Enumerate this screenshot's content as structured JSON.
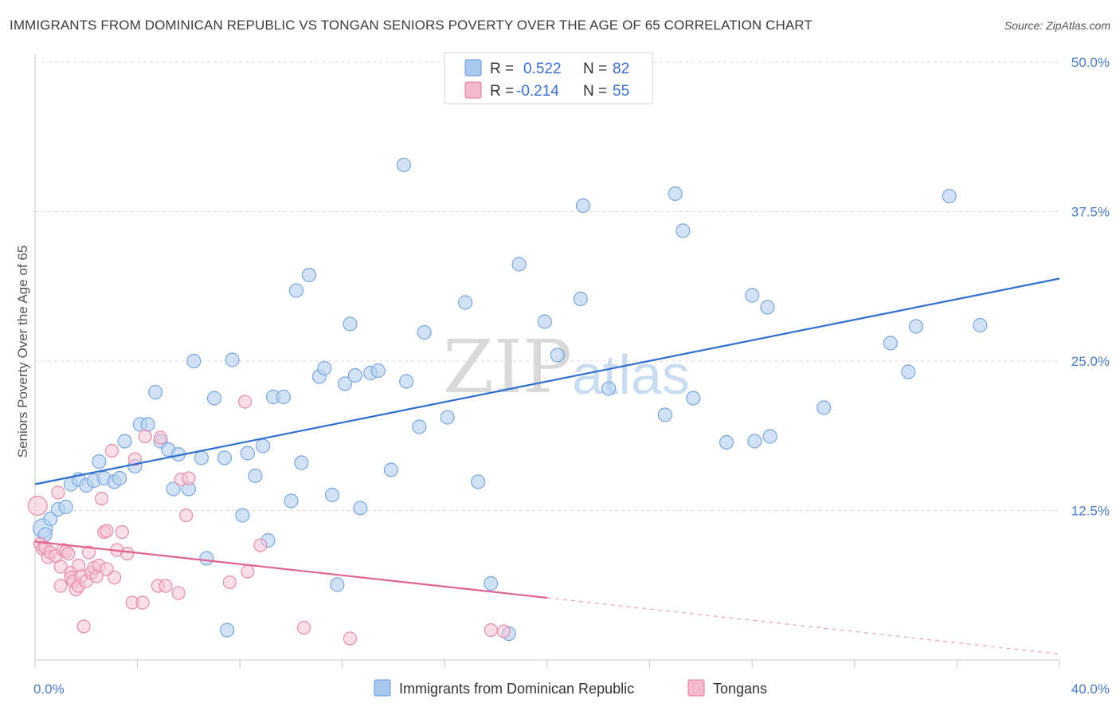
{
  "title": "IMMIGRANTS FROM DOMINICAN REPUBLIC VS TONGAN SENIORS POVERTY OVER THE AGE OF 65 CORRELATION CHART",
  "source": "Source: ZipAtlas.com",
  "watermark": {
    "zip": "ZIP",
    "atlas": "atlas"
  },
  "legend": {
    "r_label": "R =",
    "n_label": "N =",
    "rows": [
      {
        "r": "0.522",
        "n": "82",
        "fill": "#a8c8f0",
        "stroke": "#6a9ad8"
      },
      {
        "r": "-0.214",
        "n": "55",
        "fill": "#f5b8cc",
        "stroke": "#e0789c"
      }
    ]
  },
  "colors": {
    "blue_fill": "#b9d3f1",
    "blue_stroke": "#7aa6dc",
    "blue_line": "#2f6fcf",
    "pink_fill": "#f6c3d3",
    "pink_stroke": "#e58cab",
    "pink_line": "#e0648f",
    "grid": "#d8d8d8",
    "tick_text": "#4a7cc9"
  },
  "chart_data": {
    "type": "scatter",
    "title": "IMMIGRANTS FROM DOMINICAN REPUBLIC VS TONGAN SENIORS POVERTY OVER THE AGE OF 65 CORRELATION CHART",
    "xlabel": "",
    "ylabel": "Seniors Poverty Over the Age of 65",
    "xlim": [
      0,
      40
    ],
    "ylim": [
      0,
      50
    ],
    "x_tick_labels": [
      "0.0%",
      "40.0%"
    ],
    "y_ticks": [
      12.5,
      25.0,
      37.5,
      50.0
    ],
    "y_tick_labels": [
      "12.5%",
      "25.0%",
      "37.5%",
      "50.0%"
    ],
    "grid": true,
    "legend_position": "top-center",
    "series": [
      {
        "name": "Immigrants from Dominican Republic",
        "color": "#b9d3f1",
        "trend": {
          "x": [
            0,
            40
          ],
          "y": [
            14.7,
            31.9
          ]
        },
        "points": [
          [
            0.3,
            11.0
          ],
          [
            0.4,
            10.5
          ],
          [
            0.6,
            11.8
          ],
          [
            0.9,
            12.6
          ],
          [
            1.2,
            12.8
          ],
          [
            1.4,
            14.7
          ],
          [
            1.7,
            15.1
          ],
          [
            2.0,
            14.6
          ],
          [
            2.3,
            15.0
          ],
          [
            2.5,
            16.6
          ],
          [
            2.7,
            15.2
          ],
          [
            3.1,
            14.9
          ],
          [
            3.3,
            15.2
          ],
          [
            3.5,
            18.3
          ],
          [
            3.9,
            16.2
          ],
          [
            4.1,
            19.7
          ],
          [
            4.4,
            19.7
          ],
          [
            4.7,
            22.4
          ],
          [
            4.9,
            18.3
          ],
          [
            5.2,
            17.6
          ],
          [
            5.4,
            14.3
          ],
          [
            5.6,
            17.2
          ],
          [
            6.0,
            14.3
          ],
          [
            6.2,
            25.0
          ],
          [
            6.5,
            16.9
          ],
          [
            6.7,
            8.5
          ],
          [
            7.0,
            21.9
          ],
          [
            7.4,
            16.9
          ],
          [
            7.5,
            2.5
          ],
          [
            7.7,
            25.1
          ],
          [
            8.1,
            12.1
          ],
          [
            8.3,
            17.3
          ],
          [
            8.6,
            15.4
          ],
          [
            8.9,
            17.9
          ],
          [
            9.1,
            10.0
          ],
          [
            9.3,
            22.0
          ],
          [
            9.7,
            22.0
          ],
          [
            10.0,
            13.3
          ],
          [
            10.2,
            30.9
          ],
          [
            10.4,
            16.5
          ],
          [
            10.7,
            32.2
          ],
          [
            11.1,
            23.7
          ],
          [
            11.3,
            24.4
          ],
          [
            11.6,
            13.8
          ],
          [
            11.8,
            6.3
          ],
          [
            12.1,
            23.1
          ],
          [
            12.3,
            28.1
          ],
          [
            12.5,
            23.8
          ],
          [
            12.7,
            12.7
          ],
          [
            13.1,
            24.0
          ],
          [
            13.4,
            24.2
          ],
          [
            13.9,
            15.9
          ],
          [
            14.4,
            41.4
          ],
          [
            14.5,
            23.3
          ],
          [
            15.0,
            19.5
          ],
          [
            15.2,
            27.4
          ],
          [
            16.1,
            20.3
          ],
          [
            16.8,
            29.9
          ],
          [
            17.3,
            14.9
          ],
          [
            17.8,
            6.4
          ],
          [
            18.5,
            2.2
          ],
          [
            18.9,
            33.1
          ],
          [
            19.9,
            28.3
          ],
          [
            20.4,
            25.5
          ],
          [
            21.3,
            30.2
          ],
          [
            21.4,
            38.0
          ],
          [
            22.4,
            22.7
          ],
          [
            24.6,
            20.5
          ],
          [
            25.0,
            39.0
          ],
          [
            25.3,
            35.9
          ],
          [
            25.7,
            21.9
          ],
          [
            27.0,
            18.2
          ],
          [
            28.1,
            18.3
          ],
          [
            28.0,
            30.5
          ],
          [
            28.6,
            29.5
          ],
          [
            28.7,
            18.7
          ],
          [
            30.8,
            21.1
          ],
          [
            33.4,
            26.5
          ],
          [
            34.1,
            24.1
          ],
          [
            34.4,
            27.9
          ],
          [
            35.7,
            38.8
          ],
          [
            36.9,
            28.0
          ]
        ]
      },
      {
        "name": "Tongans",
        "color": "#f6c3d3",
        "trend": {
          "x": [
            0,
            20
          ],
          "y": [
            9.9,
            5.2
          ],
          "dashed_to": [
            40,
            0.5
          ]
        },
        "points": [
          [
            0.1,
            12.9
          ],
          [
            0.2,
            9.7
          ],
          [
            0.3,
            9.3
          ],
          [
            0.4,
            9.4
          ],
          [
            0.5,
            8.6
          ],
          [
            0.6,
            9.0
          ],
          [
            0.8,
            8.7
          ],
          [
            0.9,
            14.0
          ],
          [
            1.0,
            7.8
          ],
          [
            1.0,
            6.2
          ],
          [
            1.1,
            9.2
          ],
          [
            1.2,
            9.1
          ],
          [
            1.3,
            8.9
          ],
          [
            1.4,
            7.3
          ],
          [
            1.4,
            6.9
          ],
          [
            1.5,
            6.6
          ],
          [
            1.6,
            5.9
          ],
          [
            1.7,
            6.2
          ],
          [
            1.7,
            7.9
          ],
          [
            1.8,
            7.0
          ],
          [
            1.9,
            2.8
          ],
          [
            2.0,
            6.6
          ],
          [
            2.1,
            9.0
          ],
          [
            2.2,
            7.3
          ],
          [
            2.3,
            7.7
          ],
          [
            2.4,
            7.0
          ],
          [
            2.5,
            7.9
          ],
          [
            2.6,
            13.5
          ],
          [
            2.7,
            10.7
          ],
          [
            2.8,
            7.6
          ],
          [
            2.8,
            10.8
          ],
          [
            3.0,
            17.5
          ],
          [
            3.1,
            6.9
          ],
          [
            3.2,
            9.2
          ],
          [
            3.4,
            10.7
          ],
          [
            3.6,
            8.9
          ],
          [
            3.8,
            4.8
          ],
          [
            3.9,
            16.8
          ],
          [
            4.2,
            4.8
          ],
          [
            4.3,
            18.7
          ],
          [
            4.8,
            6.2
          ],
          [
            4.9,
            18.6
          ],
          [
            5.1,
            6.2
          ],
          [
            5.6,
            5.6
          ],
          [
            5.7,
            15.1
          ],
          [
            5.9,
            12.1
          ],
          [
            6.0,
            15.2
          ],
          [
            7.6,
            6.5
          ],
          [
            8.2,
            21.6
          ],
          [
            8.3,
            7.4
          ],
          [
            8.8,
            9.6
          ],
          [
            10.5,
            2.7
          ],
          [
            12.3,
            1.8
          ],
          [
            17.8,
            2.5
          ],
          [
            18.3,
            2.4
          ]
        ]
      }
    ]
  }
}
